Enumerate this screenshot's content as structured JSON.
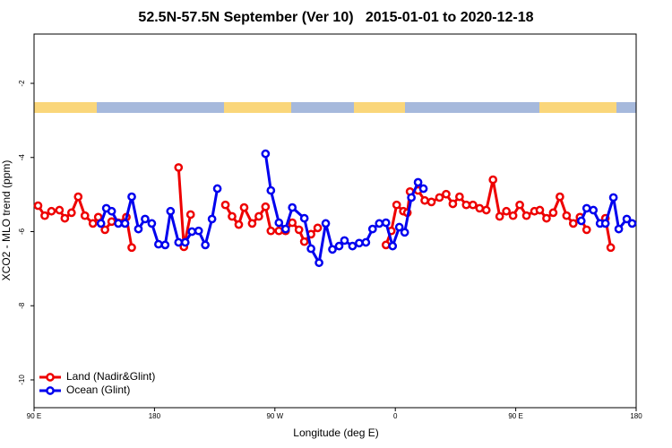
{
  "chart_data": {
    "type": "line",
    "title": "52.5N-57.5N September (Ver 10)   2015-01-01 to 2020-12-18",
    "x_label": "Longitude (deg E)",
    "y_label": "XCO2 - MLO trend (ppm)",
    "xlim": [
      90,
      540
    ],
    "xticks": [
      {
        "value": 90,
        "label": "90 E"
      },
      {
        "value": 180,
        "label": "180"
      },
      {
        "value": 270,
        "label": "90 W"
      },
      {
        "value": 360,
        "label": "0"
      },
      {
        "value": 450,
        "label": "90 E"
      },
      {
        "value": 540,
        "label": "180"
      }
    ],
    "ylim": [
      -10.75,
      -0.67
    ],
    "yticks": [
      -10,
      -8,
      -6,
      -4,
      -2
    ],
    "legend": "bottom-left",
    "series": [
      {
        "name": "Land (Nadir&Glint)",
        "color": "#ee0000",
        "x": [
          93,
          98,
          103,
          109,
          113,
          118,
          123,
          128,
          134,
          138,
          143,
          148,
          153,
          159,
          163,
          null,
          198,
          202,
          207,
          null,
          233,
          238,
          243,
          247,
          253,
          258,
          263,
          267,
          273,
          278,
          283,
          288,
          292,
          297,
          302,
          null,
          353,
          357,
          361,
          366,
          369,
          371,
          377,
          382,
          387,
          393,
          398,
          403,
          408,
          413,
          418,
          423,
          428,
          433,
          438,
          443,
          448,
          453,
          458,
          464,
          468,
          473,
          478,
          483,
          488,
          493,
          498,
          503,
          null,
          517,
          521
        ],
        "values": [
          -5.3,
          -5.57,
          -5.45,
          -5.42,
          -5.64,
          -5.49,
          -5.06,
          -5.57,
          -5.78,
          -5.61,
          -5.95,
          -5.73,
          -5.76,
          -5.61,
          -6.43,
          null,
          -4.27,
          -6.41,
          -5.54,
          null,
          -5.28,
          -5.59,
          -5.81,
          -5.35,
          -5.78,
          -5.59,
          -5.33,
          -5.98,
          -5.98,
          -5.98,
          -5.76,
          -5.95,
          -6.27,
          -6.07,
          -5.9,
          null,
          -6.36,
          -5.98,
          -5.28,
          -5.45,
          -5.49,
          -4.92,
          -4.89,
          -5.16,
          -5.2,
          -5.08,
          -4.99,
          -5.25,
          -5.06,
          -5.28,
          -5.28,
          -5.37,
          -5.42,
          -4.6,
          -5.59,
          -5.45,
          -5.57,
          -5.28,
          -5.57,
          -5.45,
          -5.42,
          -5.64,
          -5.49,
          -5.06,
          -5.57,
          -5.78,
          -5.61,
          -5.95,
          null,
          -5.64,
          -6.43
        ]
      },
      {
        "name": "Ocean (Glint)",
        "color": "#0000ee",
        "x": [
          140,
          144,
          148,
          153,
          158,
          163,
          168,
          173,
          178,
          183,
          188,
          192,
          198,
          203,
          208,
          213,
          218,
          223,
          227,
          null,
          263,
          267,
          273,
          278,
          283,
          292,
          297,
          303,
          308,
          313,
          318,
          322,
          328,
          333,
          338,
          343,
          348,
          353,
          358,
          363,
          367,
          372,
          377,
          381,
          null,
          499,
          503,
          508,
          513,
          517,
          523,
          527,
          533,
          537
        ],
        "values": [
          -5.78,
          -5.37,
          -5.45,
          -5.78,
          -5.78,
          -5.06,
          -5.93,
          -5.66,
          -5.78,
          -6.34,
          -6.36,
          -5.45,
          -6.29,
          -6.29,
          -6.0,
          -5.98,
          -6.36,
          -5.66,
          -4.84,
          null,
          -3.9,
          -4.89,
          -5.76,
          -5.93,
          -5.35,
          -5.64,
          -6.46,
          -6.84,
          -5.78,
          -6.48,
          -6.39,
          -6.24,
          -6.39,
          -6.31,
          -6.29,
          -5.93,
          -5.78,
          -5.76,
          -6.39,
          -5.88,
          -6.02,
          -5.08,
          -4.67,
          -4.84,
          null,
          -5.71,
          -5.37,
          -5.42,
          -5.78,
          -5.78,
          -5.08,
          -5.93,
          -5.66,
          -5.78
        ]
      }
    ]
  }
}
